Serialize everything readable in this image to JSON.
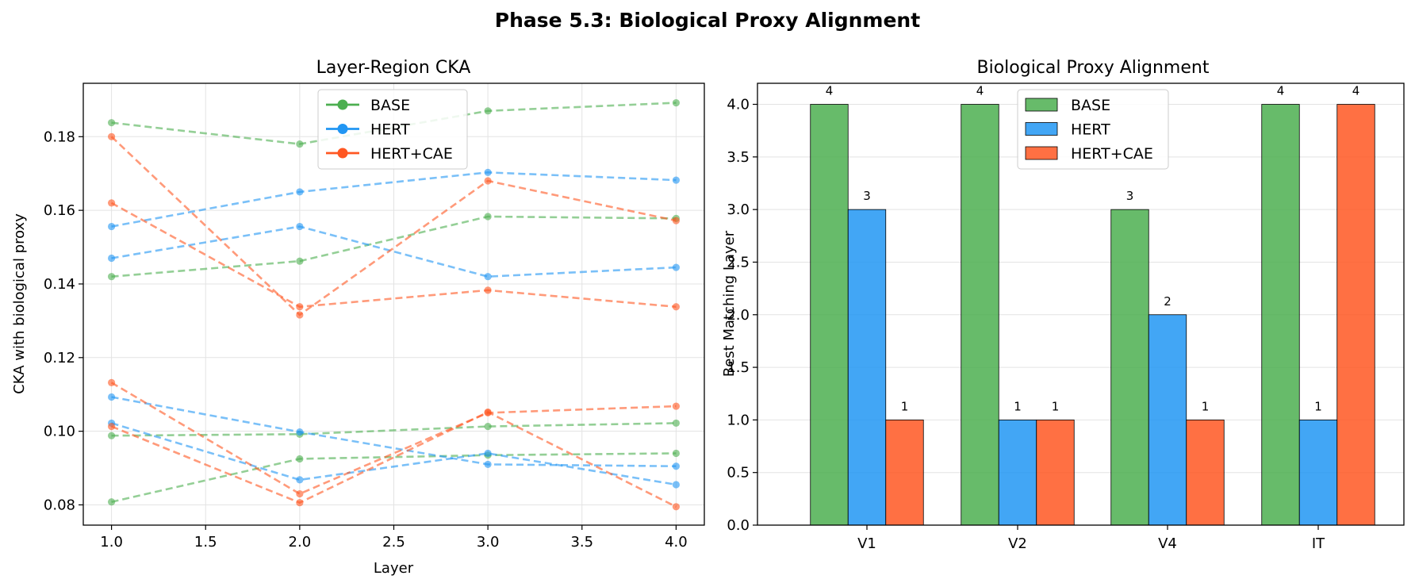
{
  "figure": {
    "suptitle": "Phase 5.3: Biological Proxy Alignment"
  },
  "colors": {
    "BASE": "#4caf50",
    "HERT": "#2196f3",
    "HERT+CAE": "#ff5722"
  },
  "chart_data": [
    {
      "type": "line",
      "title": "Layer-Region CKA",
      "xlabel": "Layer",
      "ylabel": "CKA with biological proxy",
      "xlim": [
        0.85,
        4.15
      ],
      "ylim": [
        0.0745,
        0.1945
      ],
      "xticks": [
        "1.0",
        "1.5",
        "2.0",
        "2.5",
        "3.0",
        "3.5",
        "4.0"
      ],
      "yticks": [
        "0.08",
        "0.10",
        "0.12",
        "0.14",
        "0.16",
        "0.18"
      ],
      "grid": true,
      "legend_position": "top-center",
      "legend": [
        "BASE",
        "HERT",
        "HERT+CAE"
      ],
      "x": [
        1,
        2,
        3,
        4
      ],
      "series": [
        {
          "name": "BASE",
          "values": [
            0.1838,
            0.178,
            0.187,
            0.1892
          ]
        },
        {
          "name": "BASE",
          "values": [
            0.142,
            0.1462,
            0.1583,
            0.1578
          ]
        },
        {
          "name": "BASE",
          "values": [
            0.0988,
            0.0992,
            0.1013,
            0.1022
          ]
        },
        {
          "name": "BASE",
          "values": [
            0.0808,
            0.0925,
            0.0935,
            0.094
          ]
        },
        {
          "name": "HERT",
          "values": [
            0.1556,
            0.165,
            0.1703,
            0.1682
          ]
        },
        {
          "name": "HERT",
          "values": [
            0.147,
            0.1556,
            0.142,
            0.1445
          ]
        },
        {
          "name": "HERT",
          "values": [
            0.1093,
            0.0998,
            0.091,
            0.0905
          ]
        },
        {
          "name": "HERT",
          "values": [
            0.1022,
            0.0868,
            0.094,
            0.0855
          ]
        },
        {
          "name": "HERT+CAE",
          "values": [
            0.18,
            0.1316,
            0.168,
            0.1572
          ]
        },
        {
          "name": "HERT+CAE",
          "values": [
            0.162,
            0.1338,
            0.1383,
            0.1338
          ]
        },
        {
          "name": "HERT+CAE",
          "values": [
            0.1132,
            0.083,
            0.105,
            0.1068
          ]
        },
        {
          "name": "HERT+CAE",
          "values": [
            0.1013,
            0.0806,
            0.1052,
            0.0795
          ]
        }
      ]
    },
    {
      "type": "bar",
      "title": "Biological Proxy Alignment",
      "xlabel": "",
      "ylabel": "Best Matching Layer",
      "ylim": [
        0,
        4.2
      ],
      "yticks": [
        "0.0",
        "0.5",
        "1.0",
        "1.5",
        "2.0",
        "2.5",
        "3.0",
        "3.5",
        "4.0"
      ],
      "grid": true,
      "legend_position": "top-center",
      "categories": [
        "V1",
        "V2",
        "V4",
        "IT"
      ],
      "series": [
        {
          "name": "BASE",
          "values": [
            4,
            4,
            3,
            4
          ]
        },
        {
          "name": "HERT",
          "values": [
            3,
            1,
            2,
            1
          ]
        },
        {
          "name": "HERT+CAE",
          "values": [
            1,
            1,
            1,
            4
          ]
        }
      ]
    }
  ]
}
